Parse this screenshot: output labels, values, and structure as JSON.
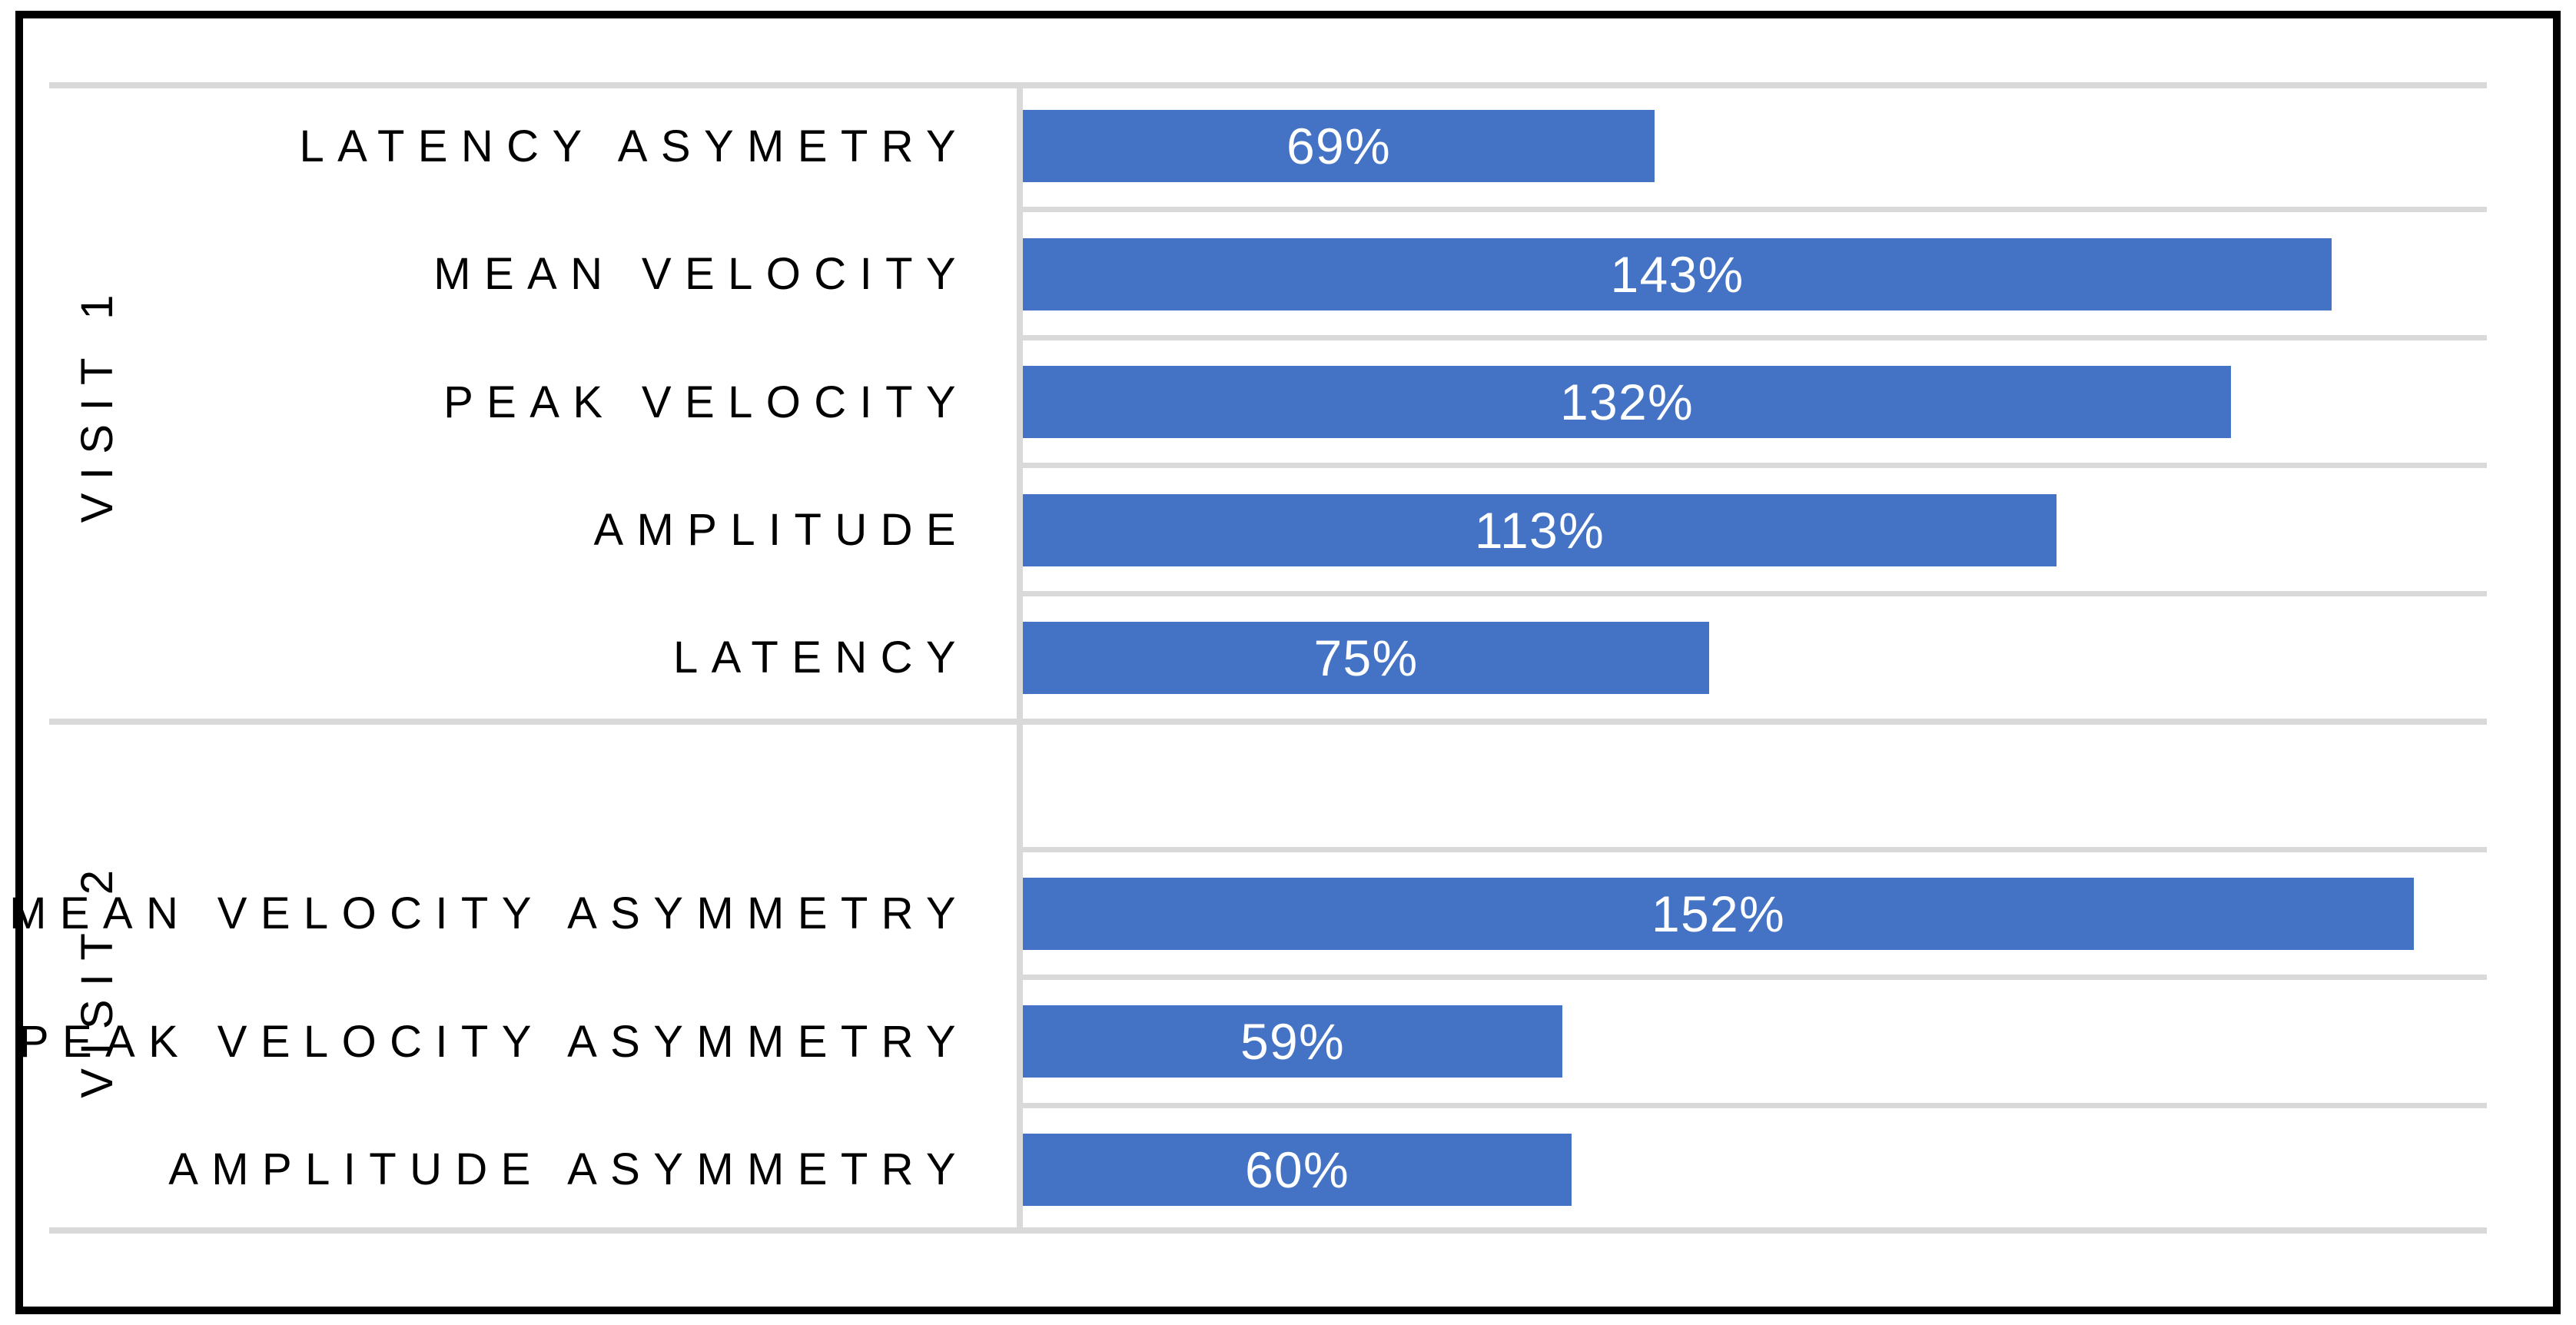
{
  "chart_data": {
    "type": "bar",
    "orientation": "horizontal",
    "title": "",
    "xlabel": "",
    "ylabel": "",
    "xlim": [
      0,
      160
    ],
    "x_axis_tick_labels_visible": false,
    "legend": "none",
    "grid": "horizontal category separator lines only",
    "value_label_position": "inside-center",
    "group_axis": "two-level category axis (visit groups) on left, group labels rotated 90deg reading bottom-to-top",
    "groups": [
      {
        "label": "VISIT 1",
        "rows": [
          {
            "category": "LATENCY ASYMETRY",
            "value": 69,
            "display": "69%"
          },
          {
            "category": "MEAN VELOCITY",
            "value": 143,
            "display": "143%"
          },
          {
            "category": "PEAK VELOCITY",
            "value": 132,
            "display": "132%"
          },
          {
            "category": "AMPLITUDE",
            "value": 113,
            "display": "113%"
          },
          {
            "category": "LATENCY",
            "value": 75,
            "display": "75%"
          }
        ]
      },
      {
        "label": "VISIT 2",
        "rows": [
          {
            "category": "",
            "value": null,
            "display": ""
          },
          {
            "category": "MEAN VELOCITY ASYMMETRY",
            "value": 152,
            "display": "152%"
          },
          {
            "category": "PEAK VELOCITY ASYMMETRY",
            "value": 59,
            "display": "59%"
          },
          {
            "category": "AMPLITUDE ASYMMETRY",
            "value": 60,
            "display": "60%"
          }
        ]
      }
    ],
    "categories": [
      "LATENCY ASYMETRY",
      "MEAN VELOCITY",
      "PEAK VELOCITY",
      "AMPLITUDE",
      "LATENCY",
      "",
      "MEAN VELOCITY ASYMMETRY",
      "PEAK VELOCITY ASYMMETRY",
      "AMPLITUDE ASYMMETRY"
    ],
    "values": [
      69,
      143,
      132,
      113,
      75,
      null,
      152,
      59,
      60
    ],
    "colors": {
      "bar": "#4472C4",
      "value_label": "#FFFFFF",
      "category_label": "#000000",
      "group_label": "#000000",
      "gridline": "#D9D9D9",
      "border": "#000000",
      "background": "#FFFFFF"
    }
  }
}
